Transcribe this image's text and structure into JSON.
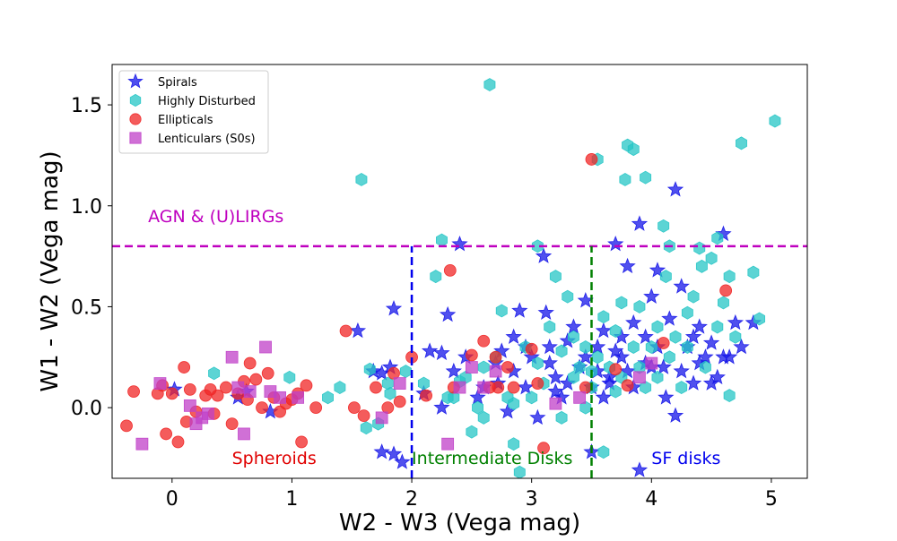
{
  "chart_data": {
    "type": "scatter",
    "title": "",
    "xlabel": "W2 - W3 (Vega mag)",
    "ylabel": "W1 - W2 (Vega mag)",
    "xlim": [
      -0.5,
      5.3
    ],
    "ylim": [
      -0.35,
      1.7
    ],
    "xticks": [
      0,
      1,
      2,
      3,
      4,
      5
    ],
    "yticks": [
      0.0,
      0.5,
      1.0,
      1.5
    ],
    "xtick_labels": [
      "0",
      "1",
      "2",
      "3",
      "4",
      "5"
    ],
    "ytick_labels": [
      "0.0",
      "0.5",
      "1.0",
      "1.5"
    ],
    "grid": false,
    "legend_position": "top-left",
    "colors": {
      "spirals": "#1515e8",
      "highly_disturbed": "#25c5c5",
      "ellipticals": "#f02525",
      "lenticulars": "#c040c8",
      "agn_line": "#bf00bf",
      "intermediate_line": "#0000ee",
      "sf_line": "#008000"
    },
    "reference_lines": [
      {
        "name": "agn-threshold-line",
        "orientation": "horizontal",
        "y": 0.8,
        "x_range": [
          -0.5,
          5.3
        ],
        "color": "#bf00bf"
      },
      {
        "name": "intermediate-boundary-line",
        "orientation": "vertical",
        "x": 2.0,
        "y_range": [
          -0.35,
          0.8
        ],
        "color": "#0000ee"
      },
      {
        "name": "sf-boundary-line",
        "orientation": "vertical",
        "x": 3.5,
        "y_range": [
          -0.35,
          0.8
        ],
        "color": "#008000"
      }
    ],
    "annotations": [
      {
        "name": "agn-label",
        "text": "AGN & (U)LIRGs",
        "x": -0.2,
        "y": 0.92,
        "color": "#bf00bf"
      },
      {
        "name": "spheroids-label",
        "text": "Spheroids",
        "x": 0.5,
        "y": -0.28,
        "color": "#e00000"
      },
      {
        "name": "intermediate-label",
        "text": "Intermediate Disks",
        "x": 2.0,
        "y": -0.28,
        "color": "#008000"
      },
      {
        "name": "sf-disks-label",
        "text": "SF disks",
        "x": 4.0,
        "y": -0.28,
        "color": "#0000ee"
      }
    ],
    "series": [
      {
        "name": "Spirals",
        "marker": "star",
        "color": "#1515e8",
        "points": [
          [
            0.02,
            0.09
          ],
          [
            0.55,
            0.05
          ],
          [
            0.62,
            0.08
          ],
          [
            0.82,
            -0.02
          ],
          [
            1.55,
            0.38
          ],
          [
            1.68,
            0.18
          ],
          [
            1.75,
            0.17
          ],
          [
            1.82,
            0.2
          ],
          [
            1.85,
            0.49
          ],
          [
            1.92,
            -0.27
          ],
          [
            1.75,
            -0.22
          ],
          [
            1.85,
            -0.23
          ],
          [
            2.15,
            0.28
          ],
          [
            2.25,
            0.27
          ],
          [
            2.3,
            0.46
          ],
          [
            2.35,
            0.18
          ],
          [
            2.4,
            0.81
          ],
          [
            2.45,
            0.25
          ],
          [
            2.55,
            0.05
          ],
          [
            2.6,
            0.1
          ],
          [
            2.7,
            0.22
          ],
          [
            2.72,
            0.12
          ],
          [
            2.8,
            -0.02
          ],
          [
            2.85,
            0.35
          ],
          [
            2.9,
            0.48
          ],
          [
            2.95,
            0.1
          ],
          [
            3.0,
            0.25
          ],
          [
            3.05,
            -0.05
          ],
          [
            3.1,
            0.75
          ],
          [
            3.12,
            0.47
          ],
          [
            3.15,
            0.3
          ],
          [
            3.2,
            0.15
          ],
          [
            3.25,
            0.05
          ],
          [
            3.3,
            0.33
          ],
          [
            3.4,
            0.2
          ],
          [
            3.45,
            0.53
          ],
          [
            3.5,
            0.1
          ],
          [
            3.55,
            0.3
          ],
          [
            3.6,
            0.38
          ],
          [
            3.65,
            0.15
          ],
          [
            3.7,
            0.81
          ],
          [
            3.75,
            0.25
          ],
          [
            3.8,
            0.7
          ],
          [
            3.85,
            0.1
          ],
          [
            3.9,
            0.91
          ],
          [
            3.95,
            0.35
          ],
          [
            4.0,
            0.55
          ],
          [
            4.05,
            0.68
          ],
          [
            4.1,
            0.2
          ],
          [
            4.15,
            0.44
          ],
          [
            4.2,
            1.08
          ],
          [
            4.25,
            0.6
          ],
          [
            4.3,
            0.3
          ],
          [
            4.35,
            0.12
          ],
          [
            4.4,
            0.4
          ],
          [
            4.45,
            0.25
          ],
          [
            4.5,
            0.32
          ],
          [
            4.55,
            0.15
          ],
          [
            4.6,
            0.86
          ],
          [
            4.65,
            0.25
          ],
          [
            4.7,
            0.42
          ],
          [
            4.85,
            0.42
          ],
          [
            4.2,
            -0.04
          ],
          [
            3.9,
            -0.31
          ],
          [
            3.5,
            -0.22
          ],
          [
            2.25,
            0.0
          ],
          [
            2.1,
            0.07
          ],
          [
            2.85,
            0.18
          ],
          [
            3.35,
            0.4
          ],
          [
            3.6,
            0.05
          ],
          [
            3.8,
            0.18
          ],
          [
            4.0,
            0.2
          ],
          [
            4.12,
            0.05
          ],
          [
            3.2,
            0.08
          ],
          [
            2.95,
            0.3
          ],
          [
            3.7,
            0.28
          ],
          [
            3.85,
            0.42
          ],
          [
            4.25,
            0.18
          ],
          [
            4.6,
            0.25
          ],
          [
            3.3,
            0.12
          ],
          [
            3.55,
            0.18
          ],
          [
            3.45,
            0.25
          ],
          [
            3.75,
            0.35
          ],
          [
            4.05,
            0.3
          ],
          [
            4.35,
            0.35
          ],
          [
            4.5,
            0.12
          ],
          [
            3.65,
            0.12
          ],
          [
            3.15,
            0.22
          ],
          [
            2.75,
            0.28
          ],
          [
            3.95,
            0.22
          ],
          [
            4.75,
            0.3
          ],
          [
            4.4,
            0.22
          ]
        ]
      },
      {
        "name": "Highly Disturbed",
        "marker": "hexagon",
        "color": "#25c5c5",
        "points": [
          [
            0.35,
            0.17
          ],
          [
            0.98,
            0.15
          ],
          [
            1.3,
            0.05
          ],
          [
            1.4,
            0.1
          ],
          [
            1.58,
            1.13
          ],
          [
            1.62,
            -0.1
          ],
          [
            1.65,
            0.19
          ],
          [
            1.72,
            -0.08
          ],
          [
            1.8,
            0.12
          ],
          [
            1.82,
            0.07
          ],
          [
            2.2,
            0.65
          ],
          [
            2.25,
            0.83
          ],
          [
            2.3,
            0.05
          ],
          [
            2.45,
            0.15
          ],
          [
            2.55,
            0.0
          ],
          [
            2.6,
            -0.05
          ],
          [
            2.65,
            1.6
          ],
          [
            2.75,
            0.48
          ],
          [
            2.8,
            0.05
          ],
          [
            2.85,
            -0.18
          ],
          [
            2.9,
            -0.32
          ],
          [
            3.0,
            0.05
          ],
          [
            3.05,
            0.8
          ],
          [
            3.1,
            0.12
          ],
          [
            3.2,
            0.65
          ],
          [
            3.3,
            0.55
          ],
          [
            3.35,
            0.35
          ],
          [
            3.4,
            0.2
          ],
          [
            3.5,
            0.1
          ],
          [
            3.55,
            1.23
          ],
          [
            3.6,
            0.45
          ],
          [
            3.7,
            0.08
          ],
          [
            3.75,
            0.52
          ],
          [
            3.78,
            1.13
          ],
          [
            3.8,
            1.3
          ],
          [
            3.85,
            1.28
          ],
          [
            3.9,
            0.5
          ],
          [
            3.95,
            1.14
          ],
          [
            4.0,
            0.3
          ],
          [
            4.05,
            0.4
          ],
          [
            4.1,
            0.9
          ],
          [
            4.12,
            0.65
          ],
          [
            4.15,
            0.8
          ],
          [
            4.2,
            0.35
          ],
          [
            4.3,
            0.47
          ],
          [
            4.35,
            0.55
          ],
          [
            4.4,
            0.79
          ],
          [
            4.42,
            0.7
          ],
          [
            4.5,
            0.74
          ],
          [
            4.55,
            0.84
          ],
          [
            4.6,
            0.52
          ],
          [
            4.65,
            0.65
          ],
          [
            4.7,
            0.35
          ],
          [
            4.75,
            1.31
          ],
          [
            4.85,
            0.67
          ],
          [
            4.9,
            0.44
          ],
          [
            5.03,
            1.42
          ],
          [
            4.65,
            0.06
          ],
          [
            2.4,
            0.13
          ],
          [
            2.5,
            -0.12
          ],
          [
            3.25,
            -0.05
          ],
          [
            3.45,
            0.0
          ],
          [
            3.65,
            0.2
          ],
          [
            3.85,
            0.3
          ],
          [
            4.25,
            0.1
          ],
          [
            4.45,
            0.2
          ],
          [
            3.15,
            0.4
          ],
          [
            2.95,
            0.3
          ],
          [
            2.7,
            0.25
          ],
          [
            3.35,
            0.15
          ],
          [
            3.55,
            0.25
          ],
          [
            3.75,
            0.15
          ],
          [
            3.95,
            0.1
          ],
          [
            4.15,
            0.25
          ],
          [
            1.95,
            0.18
          ],
          [
            2.1,
            0.12
          ],
          [
            2.35,
            0.05
          ],
          [
            3.6,
            -0.22
          ],
          [
            2.85,
            0.02
          ],
          [
            3.05,
            0.22
          ],
          [
            3.45,
            0.3
          ],
          [
            3.9,
            0.2
          ],
          [
            4.05,
            0.15
          ],
          [
            3.25,
            0.28
          ],
          [
            3.5,
            0.18
          ],
          [
            3.7,
            0.38
          ],
          [
            4.3,
            0.3
          ],
          [
            4.55,
            0.4
          ],
          [
            2.6,
            0.2
          ]
        ]
      },
      {
        "name": "Ellipticals",
        "marker": "circle",
        "color": "#f02525",
        "points": [
          [
            -0.38,
            -0.09
          ],
          [
            -0.32,
            0.08
          ],
          [
            -0.12,
            0.07
          ],
          [
            -0.08,
            0.11
          ],
          [
            -0.05,
            -0.13
          ],
          [
            0.0,
            0.07
          ],
          [
            0.05,
            -0.17
          ],
          [
            0.1,
            0.2
          ],
          [
            0.12,
            -0.07
          ],
          [
            0.2,
            -0.02
          ],
          [
            0.28,
            0.06
          ],
          [
            0.35,
            -0.03
          ],
          [
            0.38,
            0.06
          ],
          [
            0.45,
            0.1
          ],
          [
            0.5,
            -0.08
          ],
          [
            0.55,
            0.07
          ],
          [
            0.6,
            0.13
          ],
          [
            0.63,
            0.04
          ],
          [
            0.65,
            0.22
          ],
          [
            0.7,
            0.14
          ],
          [
            0.75,
            0.0
          ],
          [
            0.8,
            0.17
          ],
          [
            0.85,
            0.05
          ],
          [
            0.9,
            -0.02
          ],
          [
            0.95,
            0.02
          ],
          [
            1.0,
            0.04
          ],
          [
            1.05,
            0.07
          ],
          [
            1.08,
            -0.17
          ],
          [
            1.12,
            0.11
          ],
          [
            1.2,
            0.0
          ],
          [
            1.45,
            0.38
          ],
          [
            1.52,
            0.0
          ],
          [
            1.6,
            -0.04
          ],
          [
            1.7,
            0.1
          ],
          [
            1.8,
            0.0
          ],
          [
            1.85,
            0.17
          ],
          [
            1.9,
            0.03
          ],
          [
            2.0,
            0.25
          ],
          [
            2.12,
            0.06
          ],
          [
            2.32,
            0.68
          ],
          [
            2.35,
            0.1
          ],
          [
            2.5,
            0.26
          ],
          [
            2.6,
            0.33
          ],
          [
            2.65,
            0.1
          ],
          [
            2.7,
            0.25
          ],
          [
            2.72,
            0.1
          ],
          [
            2.8,
            0.2
          ],
          [
            2.85,
            0.1
          ],
          [
            3.0,
            0.29
          ],
          [
            3.05,
            0.12
          ],
          [
            3.1,
            -0.2
          ],
          [
            3.45,
            0.1
          ],
          [
            3.5,
            1.23
          ],
          [
            3.7,
            0.19
          ],
          [
            3.8,
            0.11
          ],
          [
            4.1,
            0.32
          ],
          [
            4.62,
            0.58
          ],
          [
            0.15,
            0.09
          ],
          [
            0.32,
            0.09
          ]
        ]
      },
      {
        "name": "Lenticulars (S0s)",
        "marker": "square",
        "color": "#c040c8",
        "points": [
          [
            -0.25,
            -0.18
          ],
          [
            -0.1,
            0.12
          ],
          [
            0.15,
            0.01
          ],
          [
            0.2,
            -0.08
          ],
          [
            0.25,
            -0.05
          ],
          [
            0.3,
            -0.03
          ],
          [
            0.5,
            0.25
          ],
          [
            0.55,
            0.1
          ],
          [
            0.6,
            -0.13
          ],
          [
            0.65,
            0.08
          ],
          [
            0.78,
            0.3
          ],
          [
            0.82,
            0.08
          ],
          [
            0.9,
            0.05
          ],
          [
            1.05,
            0.05
          ],
          [
            1.75,
            -0.05
          ],
          [
            1.9,
            0.12
          ],
          [
            2.3,
            -0.18
          ],
          [
            2.4,
            0.1
          ],
          [
            2.5,
            0.2
          ],
          [
            2.6,
            0.1
          ],
          [
            2.7,
            0.18
          ],
          [
            3.2,
            0.02
          ],
          [
            3.4,
            0.05
          ],
          [
            3.9,
            0.15
          ],
          [
            4.0,
            0.22
          ]
        ]
      }
    ]
  }
}
